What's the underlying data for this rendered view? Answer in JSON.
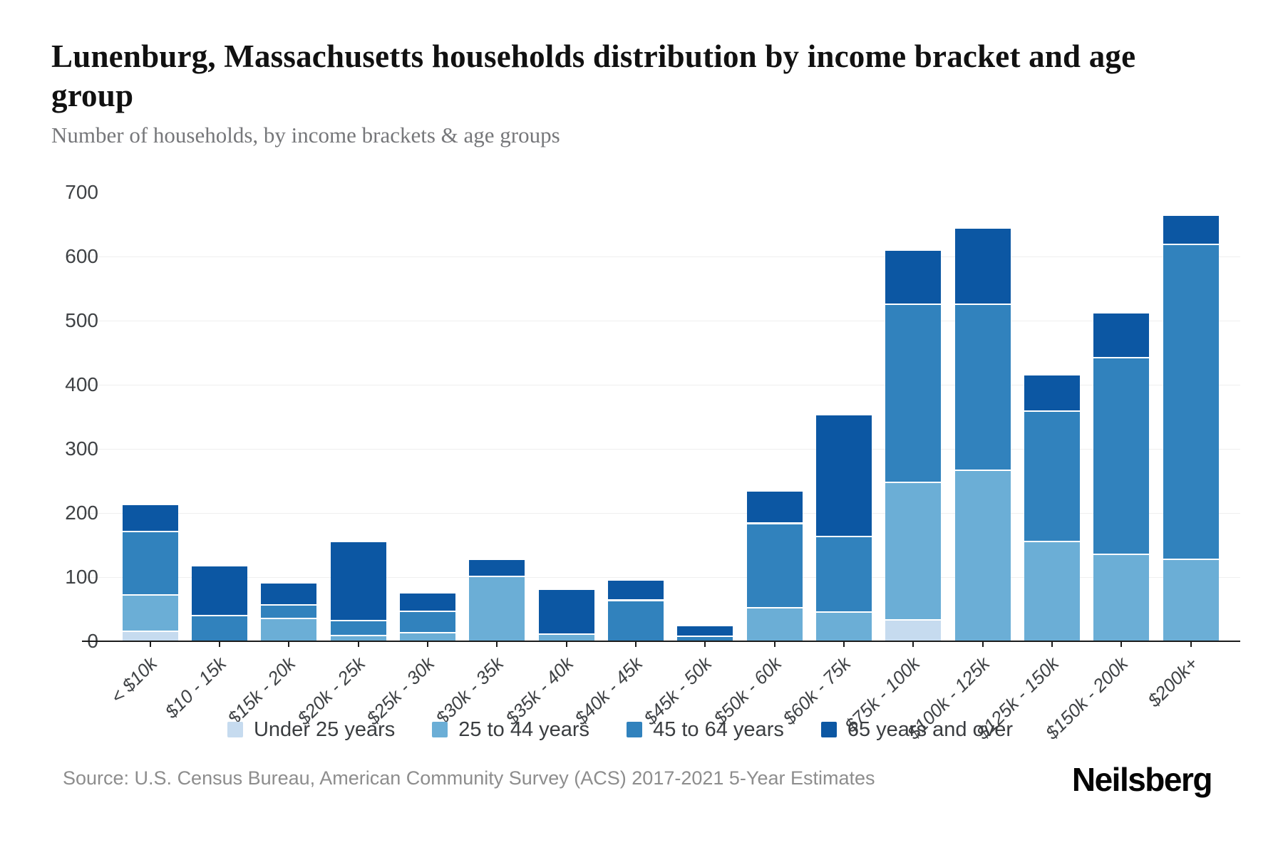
{
  "title": "Lunenburg, Massachusetts households distribution by income bracket and age group",
  "subtitle": "Number of households, by income brackets & age groups",
  "source": "Source: U.S. Census Bureau, American Community Survey (ACS) 2017-2021 5-Year Estimates",
  "brand": "Neilsberg",
  "colors": {
    "under25": "#c6dbef",
    "age25to44": "#6baed6",
    "age45to64": "#3182bd",
    "age65plus": "#0c57a3",
    "axis": "#1c1c1c",
    "gridline": "#efefef",
    "tick_label": "#3f4245",
    "subtitle_text": "#76777a",
    "source_text": "#8d8d8d"
  },
  "chart_data": {
    "type": "bar",
    "stacked": true,
    "title": "Lunenburg, Massachusetts households distribution by income bracket and age group",
    "subtitle": "Number of households, by income brackets & age groups",
    "xlabel": "",
    "ylabel": "Number of households",
    "ylim": [
      0,
      700
    ],
    "y_ticks": [
      0,
      100,
      200,
      300,
      400,
      500,
      600,
      700
    ],
    "gridline_values": [
      100,
      200,
      300,
      400,
      500,
      600
    ],
    "grid": true,
    "legend_position": "bottom",
    "categories": [
      "< $10k",
      "$10 - 15k",
      "$15k - 20k",
      "$20k - 25k",
      "$25k - 30k",
      "$30k - 35k",
      "$35k - 40k",
      "$40k - 45k",
      "$45k - 50k",
      "$50k - 60k",
      "$60k - 75k",
      "$75k - 100k",
      "$100k - 125k",
      "$125k - 150k",
      "$150k - 200k",
      "$200k+"
    ],
    "series": [
      {
        "name": "Under 25 years",
        "color_key": "under25",
        "values": [
          17,
          0,
          0,
          0,
          0,
          0,
          0,
          0,
          0,
          0,
          0,
          34,
          0,
          0,
          0,
          0
        ]
      },
      {
        "name": "25 to 44 years",
        "color_key": "age25to44",
        "values": [
          56,
          0,
          37,
          10,
          14,
          102,
          12,
          0,
          0,
          53,
          47,
          215,
          268,
          157,
          137,
          129
        ]
      },
      {
        "name": "45 to 64 years",
        "color_key": "age45to64",
        "values": [
          99,
          41,
          21,
          23,
          34,
          0,
          0,
          65,
          9,
          132,
          117,
          278,
          259,
          203,
          306,
          491
        ]
      },
      {
        "name": "65 years and over",
        "color_key": "age65plus",
        "values": [
          42,
          78,
          34,
          124,
          29,
          27,
          70,
          32,
          17,
          51,
          191,
          84,
          119,
          57,
          70,
          46
        ]
      }
    ],
    "totals": [
      214,
      119,
      92,
      157,
      77,
      129,
      82,
      97,
      26,
      236,
      355,
      611,
      646,
      417,
      513,
      666
    ]
  }
}
